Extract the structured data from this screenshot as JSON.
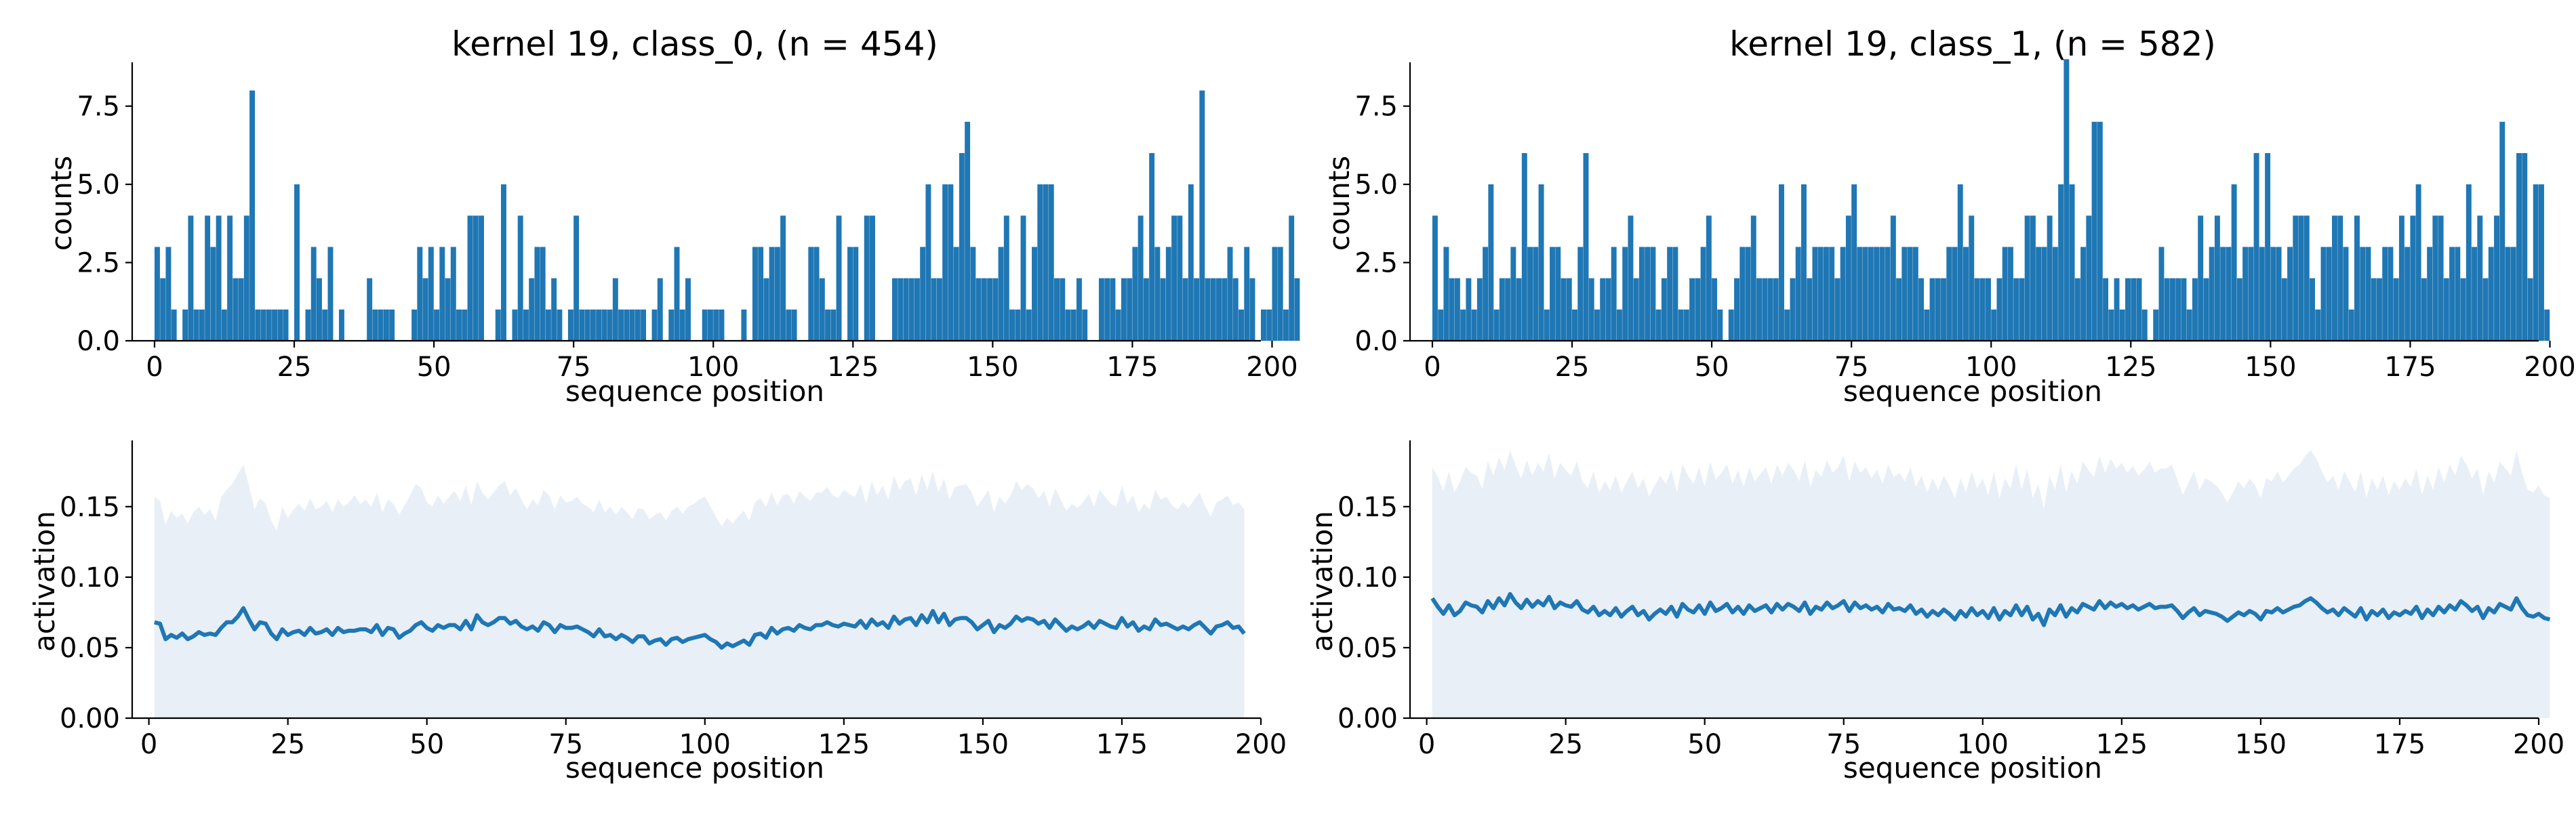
{
  "chart_data": [
    {
      "type": "bar",
      "title": "kernel 19, class_0, (n = 454)",
      "xlabel": "sequence position",
      "ylabel": "counts",
      "xlim": [
        -4,
        198
      ],
      "ylim": [
        0,
        8.9
      ],
      "xticks": [
        "0",
        "25",
        "50",
        "75",
        "100",
        "125",
        "150",
        "175",
        "200"
      ],
      "yticks": [
        "0.0",
        "2.5",
        "5.0",
        "7.5"
      ],
      "color": "#1f77b4",
      "x_start": 0,
      "values": [
        3,
        2,
        3,
        1,
        0,
        1,
        4,
        1,
        1,
        4,
        3,
        4,
        1,
        4,
        2,
        2,
        4,
        8,
        1,
        1,
        1,
        1,
        1,
        1,
        0,
        5,
        0,
        1,
        3,
        2,
        1,
        3,
        0,
        1,
        0,
        0,
        0,
        0,
        2,
        1,
        1,
        1,
        1,
        0,
        0,
        0,
        1,
        3,
        2,
        3,
        1,
        3,
        2,
        3,
        1,
        1,
        4,
        4,
        4,
        0,
        0,
        1,
        5,
        0,
        1,
        4,
        1,
        2,
        3,
        3,
        1,
        2,
        1,
        0,
        1,
        4,
        1,
        1,
        1,
        1,
        1,
        1,
        2,
        1,
        1,
        1,
        1,
        1,
        0,
        1,
        2,
        0,
        1,
        3,
        1,
        2,
        0,
        0,
        1,
        1,
        1,
        1,
        0,
        0,
        0,
        1,
        0,
        3,
        3,
        2,
        3,
        3,
        4,
        1,
        1,
        0,
        0,
        3,
        3,
        2,
        1,
        1,
        4,
        0,
        3,
        3,
        0,
        4,
        4,
        0,
        0,
        0,
        2,
        2,
        2,
        2,
        2,
        3,
        5,
        2,
        2,
        5,
        5,
        3,
        6,
        7,
        3,
        2,
        2,
        2,
        2,
        3,
        4,
        1,
        1,
        4,
        1,
        3,
        5,
        5,
        5,
        2,
        2,
        1,
        1,
        2,
        1,
        0,
        0,
        2,
        2,
        2,
        1,
        2,
        2,
        3,
        4,
        2,
        6,
        3,
        2,
        3,
        4,
        4,
        2,
        5,
        2,
        8,
        2,
        2,
        2,
        2,
        3,
        2,
        1,
        3,
        2,
        0,
        1,
        1,
        3,
        3,
        1,
        4,
        2
      ],
      "ylim_note": ""
    },
    {
      "type": "bar",
      "title": "kernel 19, class_1, (n = 582)",
      "xlabel": "sequence position",
      "ylabel": "counts",
      "xlim": [
        -4,
        198
      ],
      "ylim": [
        0,
        8.9
      ],
      "xticks": [
        "0",
        "25",
        "50",
        "75",
        "100",
        "125",
        "150",
        "175",
        "200"
      ],
      "yticks": [
        "0.0",
        "2.5",
        "5.0",
        "7.5"
      ],
      "color": "#1f77b4",
      "x_start": 0,
      "values": [
        4,
        1,
        3,
        2,
        2,
        1,
        2,
        1,
        2,
        3,
        5,
        1,
        2,
        2,
        3,
        2,
        6,
        3,
        3,
        5,
        1,
        3,
        3,
        2,
        2,
        1,
        3,
        6,
        2,
        1,
        2,
        2,
        3,
        1,
        3,
        4,
        2,
        3,
        3,
        3,
        1,
        2,
        3,
        3,
        1,
        1,
        2,
        2,
        3,
        4,
        2,
        1,
        0,
        1,
        2,
        3,
        3,
        4,
        2,
        2,
        2,
        2,
        5,
        1,
        2,
        3,
        5,
        2,
        3,
        3,
        3,
        3,
        2,
        3,
        4,
        5,
        3,
        3,
        3,
        3,
        3,
        3,
        4,
        2,
        3,
        3,
        3,
        2,
        1,
        2,
        2,
        2,
        3,
        3,
        5,
        3,
        4,
        2,
        2,
        2,
        1,
        2,
        3,
        3,
        2,
        2,
        4,
        4,
        3,
        3,
        4,
        3,
        5,
        9,
        5,
        2,
        3,
        4,
        7,
        7,
        2,
        1,
        2,
        1,
        2,
        2,
        2,
        1,
        0,
        1,
        3,
        2,
        2,
        2,
        2,
        1,
        2,
        4,
        2,
        3,
        4,
        3,
        3,
        5,
        2,
        3,
        3,
        6,
        3,
        6,
        3,
        3,
        2,
        3,
        4,
        4,
        4,
        2,
        1,
        3,
        3,
        4,
        4,
        3,
        1,
        4,
        3,
        3,
        2,
        2,
        3,
        3,
        2,
        4,
        3,
        4,
        5,
        2,
        3,
        4,
        4,
        2,
        3,
        3,
        2,
        5,
        3,
        4,
        2,
        3,
        4,
        7,
        3,
        3,
        6,
        6,
        2,
        5,
        5,
        1
      ]
    },
    {
      "type": "area",
      "xlabel": "sequence position",
      "ylabel": "activation",
      "xlim": [
        -3,
        200
      ],
      "ylim": [
        0,
        0.197
      ],
      "xticks": [
        "0",
        "25",
        "50",
        "75",
        "100",
        "125",
        "150",
        "175",
        "200"
      ],
      "yticks": [
        "0.00",
        "0.05",
        "0.10",
        "0.15"
      ],
      "x_start": 1,
      "line_color": "#1f77b4",
      "fill_color": "#e8eff7",
      "mean": [
        0.068,
        0.067,
        0.056,
        0.059,
        0.057,
        0.06,
        0.056,
        0.058,
        0.061,
        0.059,
        0.06,
        0.059,
        0.064,
        0.068,
        0.068,
        0.072,
        0.078,
        0.07,
        0.063,
        0.068,
        0.067,
        0.06,
        0.056,
        0.063,
        0.059,
        0.061,
        0.062,
        0.059,
        0.064,
        0.06,
        0.061,
        0.063,
        0.059,
        0.064,
        0.061,
        0.062,
        0.062,
        0.063,
        0.063,
        0.061,
        0.066,
        0.059,
        0.064,
        0.063,
        0.057,
        0.06,
        0.062,
        0.066,
        0.068,
        0.064,
        0.062,
        0.066,
        0.064,
        0.066,
        0.066,
        0.063,
        0.069,
        0.063,
        0.073,
        0.068,
        0.066,
        0.068,
        0.071,
        0.071,
        0.067,
        0.069,
        0.065,
        0.063,
        0.065,
        0.062,
        0.068,
        0.066,
        0.061,
        0.066,
        0.064,
        0.064,
        0.065,
        0.063,
        0.061,
        0.058,
        0.063,
        0.058,
        0.059,
        0.056,
        0.059,
        0.057,
        0.054,
        0.058,
        0.058,
        0.053,
        0.055,
        0.056,
        0.052,
        0.056,
        0.057,
        0.054,
        0.056,
        0.057,
        0.058,
        0.059,
        0.056,
        0.054,
        0.05,
        0.053,
        0.051,
        0.053,
        0.055,
        0.052,
        0.059,
        0.06,
        0.057,
        0.064,
        0.06,
        0.063,
        0.064,
        0.062,
        0.066,
        0.064,
        0.063,
        0.066,
        0.066,
        0.068,
        0.066,
        0.065,
        0.067,
        0.066,
        0.065,
        0.069,
        0.064,
        0.07,
        0.066,
        0.068,
        0.064,
        0.072,
        0.067,
        0.07,
        0.071,
        0.066,
        0.073,
        0.068,
        0.076,
        0.068,
        0.074,
        0.066,
        0.07,
        0.071,
        0.071,
        0.068,
        0.063,
        0.066,
        0.069,
        0.061,
        0.066,
        0.064,
        0.067,
        0.072,
        0.069,
        0.071,
        0.07,
        0.067,
        0.069,
        0.064,
        0.07,
        0.066,
        0.062,
        0.065,
        0.063,
        0.065,
        0.068,
        0.064,
        0.069,
        0.067,
        0.065,
        0.064,
        0.071,
        0.065,
        0.068,
        0.062,
        0.065,
        0.063,
        0.07,
        0.066,
        0.067,
        0.065,
        0.063,
        0.065,
        0.063,
        0.066,
        0.068,
        0.064,
        0.06,
        0.065,
        0.066,
        0.068,
        0.064,
        0.065,
        0.06
      ],
      "upper": [
        0.157,
        0.154,
        0.137,
        0.147,
        0.142,
        0.145,
        0.138,
        0.146,
        0.15,
        0.144,
        0.148,
        0.14,
        0.157,
        0.162,
        0.166,
        0.173,
        0.18,
        0.165,
        0.148,
        0.156,
        0.152,
        0.14,
        0.133,
        0.15,
        0.142,
        0.148,
        0.152,
        0.147,
        0.156,
        0.148,
        0.15,
        0.154,
        0.146,
        0.155,
        0.15,
        0.153,
        0.158,
        0.152,
        0.155,
        0.15,
        0.16,
        0.146,
        0.155,
        0.152,
        0.144,
        0.151,
        0.158,
        0.166,
        0.163,
        0.153,
        0.15,
        0.158,
        0.152,
        0.157,
        0.161,
        0.154,
        0.165,
        0.151,
        0.168,
        0.16,
        0.155,
        0.16,
        0.165,
        0.168,
        0.158,
        0.163,
        0.155,
        0.148,
        0.155,
        0.151,
        0.162,
        0.158,
        0.148,
        0.158,
        0.153,
        0.154,
        0.157,
        0.152,
        0.15,
        0.146,
        0.155,
        0.146,
        0.15,
        0.144,
        0.15,
        0.146,
        0.141,
        0.149,
        0.148,
        0.141,
        0.144,
        0.146,
        0.14,
        0.147,
        0.15,
        0.145,
        0.15,
        0.152,
        0.155,
        0.157,
        0.15,
        0.143,
        0.136,
        0.142,
        0.138,
        0.143,
        0.147,
        0.14,
        0.153,
        0.156,
        0.15,
        0.16,
        0.151,
        0.158,
        0.159,
        0.152,
        0.161,
        0.157,
        0.154,
        0.16,
        0.16,
        0.164,
        0.158,
        0.156,
        0.162,
        0.159,
        0.157,
        0.166,
        0.152,
        0.168,
        0.158,
        0.165,
        0.155,
        0.172,
        0.162,
        0.168,
        0.17,
        0.158,
        0.173,
        0.162,
        0.175,
        0.16,
        0.17,
        0.155,
        0.164,
        0.165,
        0.166,
        0.16,
        0.15,
        0.156,
        0.162,
        0.146,
        0.157,
        0.152,
        0.158,
        0.168,
        0.162,
        0.166,
        0.163,
        0.156,
        0.161,
        0.15,
        0.163,
        0.155,
        0.147,
        0.152,
        0.149,
        0.153,
        0.159,
        0.15,
        0.162,
        0.157,
        0.152,
        0.15,
        0.165,
        0.152,
        0.158,
        0.146,
        0.152,
        0.148,
        0.162,
        0.155,
        0.157,
        0.151,
        0.148,
        0.153,
        0.149,
        0.155,
        0.16,
        0.15,
        0.143,
        0.153,
        0.155,
        0.158,
        0.151,
        0.153,
        0.148
      ]
    },
    {
      "type": "area",
      "xlabel": "sequence position",
      "ylabel": "activation",
      "xlim": [
        -3,
        200
      ],
      "ylim": [
        0,
        0.197
      ],
      "xticks": [
        "0",
        "25",
        "50",
        "75",
        "100",
        "125",
        "150",
        "175",
        "200"
      ],
      "yticks": [
        "0.00",
        "0.05",
        "0.10",
        "0.15"
      ],
      "x_start": 1,
      "line_color": "#1f77b4",
      "fill_color": "#e8eff7",
      "mean": [
        0.085,
        0.079,
        0.074,
        0.08,
        0.073,
        0.076,
        0.082,
        0.08,
        0.079,
        0.075,
        0.083,
        0.078,
        0.085,
        0.08,
        0.088,
        0.082,
        0.078,
        0.084,
        0.079,
        0.083,
        0.08,
        0.086,
        0.078,
        0.082,
        0.08,
        0.079,
        0.083,
        0.077,
        0.075,
        0.079,
        0.073,
        0.076,
        0.073,
        0.078,
        0.072,
        0.076,
        0.079,
        0.073,
        0.076,
        0.07,
        0.074,
        0.077,
        0.074,
        0.079,
        0.072,
        0.081,
        0.077,
        0.075,
        0.08,
        0.074,
        0.082,
        0.076,
        0.078,
        0.081,
        0.075,
        0.079,
        0.074,
        0.08,
        0.076,
        0.078,
        0.08,
        0.075,
        0.081,
        0.077,
        0.081,
        0.079,
        0.076,
        0.082,
        0.074,
        0.079,
        0.077,
        0.082,
        0.078,
        0.08,
        0.083,
        0.076,
        0.082,
        0.078,
        0.08,
        0.077,
        0.079,
        0.075,
        0.081,
        0.077,
        0.078,
        0.076,
        0.08,
        0.074,
        0.077,
        0.072,
        0.076,
        0.073,
        0.077,
        0.074,
        0.07,
        0.076,
        0.072,
        0.078,
        0.073,
        0.076,
        0.071,
        0.078,
        0.07,
        0.076,
        0.073,
        0.08,
        0.073,
        0.079,
        0.07,
        0.074,
        0.066,
        0.077,
        0.073,
        0.08,
        0.072,
        0.078,
        0.075,
        0.081,
        0.079,
        0.077,
        0.083,
        0.078,
        0.082,
        0.079,
        0.081,
        0.078,
        0.08,
        0.077,
        0.079,
        0.081,
        0.078,
        0.079,
        0.079,
        0.08,
        0.076,
        0.071,
        0.075,
        0.078,
        0.073,
        0.076,
        0.075,
        0.074,
        0.072,
        0.069,
        0.072,
        0.075,
        0.073,
        0.076,
        0.074,
        0.07,
        0.076,
        0.075,
        0.078,
        0.075,
        0.077,
        0.079,
        0.08,
        0.083,
        0.085,
        0.082,
        0.078,
        0.075,
        0.077,
        0.073,
        0.078,
        0.075,
        0.072,
        0.078,
        0.07,
        0.076,
        0.073,
        0.077,
        0.071,
        0.075,
        0.073,
        0.076,
        0.074,
        0.079,
        0.071,
        0.077,
        0.073,
        0.079,
        0.075,
        0.08,
        0.077,
        0.083,
        0.08,
        0.076,
        0.079,
        0.071,
        0.078,
        0.075,
        0.081,
        0.079,
        0.077,
        0.085,
        0.078,
        0.073,
        0.072,
        0.074,
        0.071,
        0.07
      ],
      "upper": [
        0.178,
        0.171,
        0.161,
        0.175,
        0.16,
        0.168,
        0.178,
        0.174,
        0.172,
        0.163,
        0.182,
        0.172,
        0.185,
        0.176,
        0.19,
        0.179,
        0.17,
        0.183,
        0.172,
        0.181,
        0.175,
        0.188,
        0.17,
        0.181,
        0.176,
        0.172,
        0.182,
        0.168,
        0.163,
        0.175,
        0.16,
        0.168,
        0.162,
        0.172,
        0.16,
        0.168,
        0.175,
        0.163,
        0.17,
        0.157,
        0.165,
        0.172,
        0.166,
        0.176,
        0.16,
        0.18,
        0.172,
        0.166,
        0.178,
        0.164,
        0.182,
        0.169,
        0.174,
        0.18,
        0.166,
        0.176,
        0.164,
        0.178,
        0.168,
        0.173,
        0.178,
        0.166,
        0.18,
        0.172,
        0.181,
        0.176,
        0.168,
        0.183,
        0.164,
        0.176,
        0.171,
        0.183,
        0.174,
        0.178,
        0.186,
        0.168,
        0.182,
        0.174,
        0.178,
        0.17,
        0.176,
        0.166,
        0.18,
        0.171,
        0.174,
        0.168,
        0.178,
        0.164,
        0.172,
        0.16,
        0.17,
        0.162,
        0.172,
        0.165,
        0.156,
        0.17,
        0.16,
        0.175,
        0.163,
        0.17,
        0.158,
        0.175,
        0.156,
        0.17,
        0.163,
        0.18,
        0.162,
        0.177,
        0.156,
        0.166,
        0.148,
        0.172,
        0.162,
        0.18,
        0.16,
        0.175,
        0.166,
        0.182,
        0.176,
        0.171,
        0.186,
        0.174,
        0.184,
        0.177,
        0.181,
        0.174,
        0.179,
        0.172,
        0.176,
        0.182,
        0.174,
        0.177,
        0.177,
        0.18,
        0.169,
        0.158,
        0.167,
        0.175,
        0.162,
        0.17,
        0.168,
        0.165,
        0.16,
        0.153,
        0.16,
        0.168,
        0.163,
        0.17,
        0.165,
        0.156,
        0.17,
        0.168,
        0.175,
        0.167,
        0.172,
        0.177,
        0.18,
        0.186,
        0.19,
        0.184,
        0.175,
        0.167,
        0.172,
        0.162,
        0.175,
        0.168,
        0.16,
        0.175,
        0.156,
        0.17,
        0.162,
        0.172,
        0.158,
        0.168,
        0.162,
        0.17,
        0.164,
        0.177,
        0.158,
        0.172,
        0.162,
        0.178,
        0.167,
        0.18,
        0.172,
        0.186,
        0.18,
        0.17,
        0.177,
        0.158,
        0.175,
        0.167,
        0.182,
        0.177,
        0.172,
        0.19,
        0.174,
        0.162,
        0.16,
        0.165,
        0.158,
        0.156
      ]
    }
  ]
}
